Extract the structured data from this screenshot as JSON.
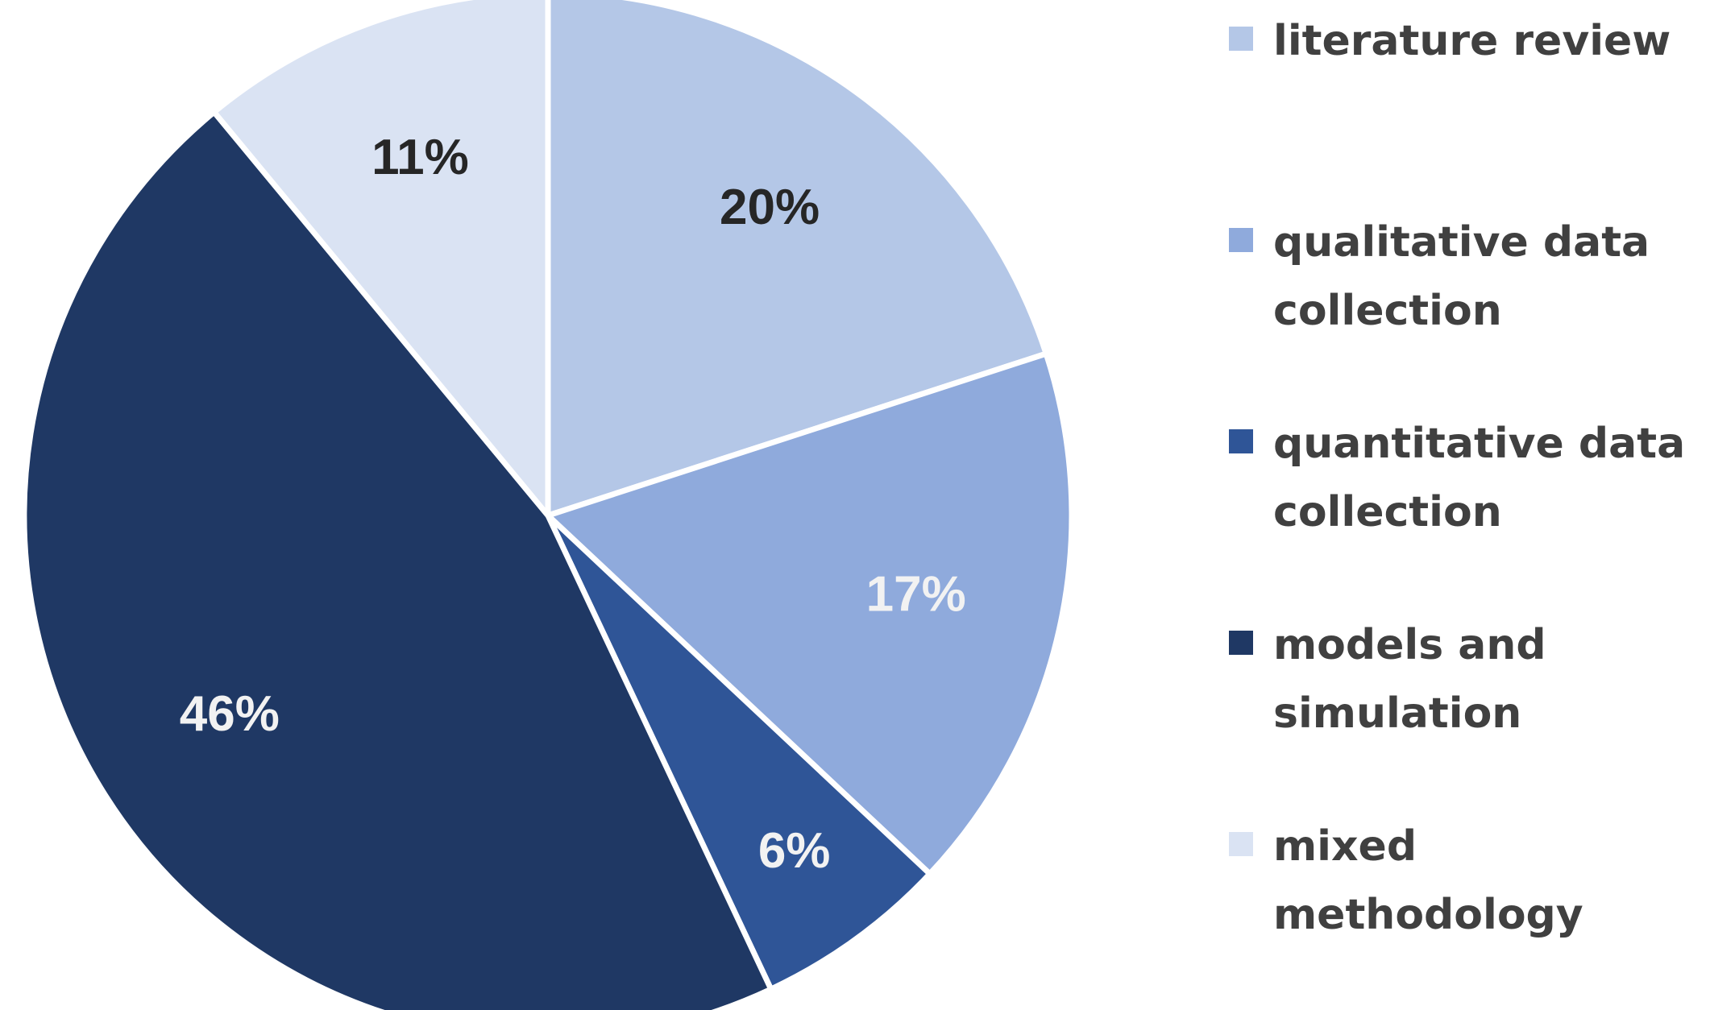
{
  "chart_data": {
    "type": "pie",
    "title": "",
    "slices": [
      {
        "label": "literature review",
        "legend_lines": [
          "literature review"
        ],
        "value": 20,
        "display": "20%",
        "color": "#b4c7e7",
        "label_color": "#262626"
      },
      {
        "label": "qualitative data collection",
        "legend_lines": [
          "qualitative data",
          "collection"
        ],
        "value": 17,
        "display": "17%",
        "color": "#8faadc",
        "label_color": "#f2f2f2"
      },
      {
        "label": "quantitative data collection",
        "legend_lines": [
          "quantitative data",
          "collection"
        ],
        "value": 6,
        "display": "6%",
        "color": "#2f5597",
        "label_color": "#f2f2f2"
      },
      {
        "label": "models and simulation",
        "legend_lines": [
          "models and",
          "simulation"
        ],
        "value": 46,
        "display": "46%",
        "color": "#1f3864",
        "label_color": "#f2f2f2"
      },
      {
        "label": "mixed methodology",
        "legend_lines": [
          "mixed",
          "methodology"
        ],
        "value": 11,
        "display": "11%",
        "color": "#dae3f3",
        "label_color": "#262626"
      }
    ],
    "start_angle_deg": 0,
    "direction": "clockwise",
    "legend_position": "right"
  }
}
